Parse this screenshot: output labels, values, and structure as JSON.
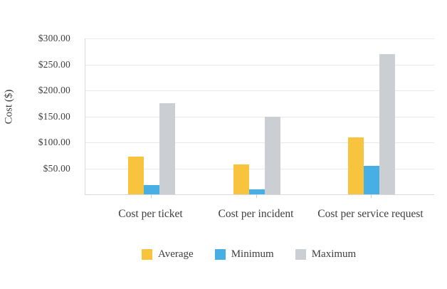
{
  "chart_data": {
    "type": "bar",
    "title": "",
    "xlabel": "",
    "ylabel": "Cost ($)",
    "categories": [
      "Cost per ticket",
      "Cost per incident",
      "Cost per service request"
    ],
    "series": [
      {
        "name": "Average",
        "color": "#f9c43d",
        "values": [
          72,
          57,
          110
        ]
      },
      {
        "name": "Minimum",
        "color": "#47afe3",
        "values": [
          18,
          10,
          55
        ]
      },
      {
        "name": "Maximum",
        "color": "#cbced2",
        "values": [
          175,
          150,
          270
        ]
      }
    ],
    "ylim": [
      0,
      300
    ],
    "ytick_step": 50,
    "yticks": [
      {
        "label": "$300.00",
        "value": 300
      },
      {
        "label": "$250.00",
        "value": 250
      },
      {
        "label": "$200.00",
        "value": 200
      },
      {
        "label": "$150.00",
        "value": 150
      },
      {
        "label": "$100.00",
        "value": 100
      },
      {
        "label": "$50.00",
        "value": 50
      }
    ],
    "grid": true,
    "legend_position": "bottom"
  },
  "colors": {
    "background": "#ffffff",
    "text": "#3d3d3d",
    "gridline": "#e7e7ed",
    "axis_line": "#d8d8e0",
    "tick_mark": "#c9c9d1"
  }
}
